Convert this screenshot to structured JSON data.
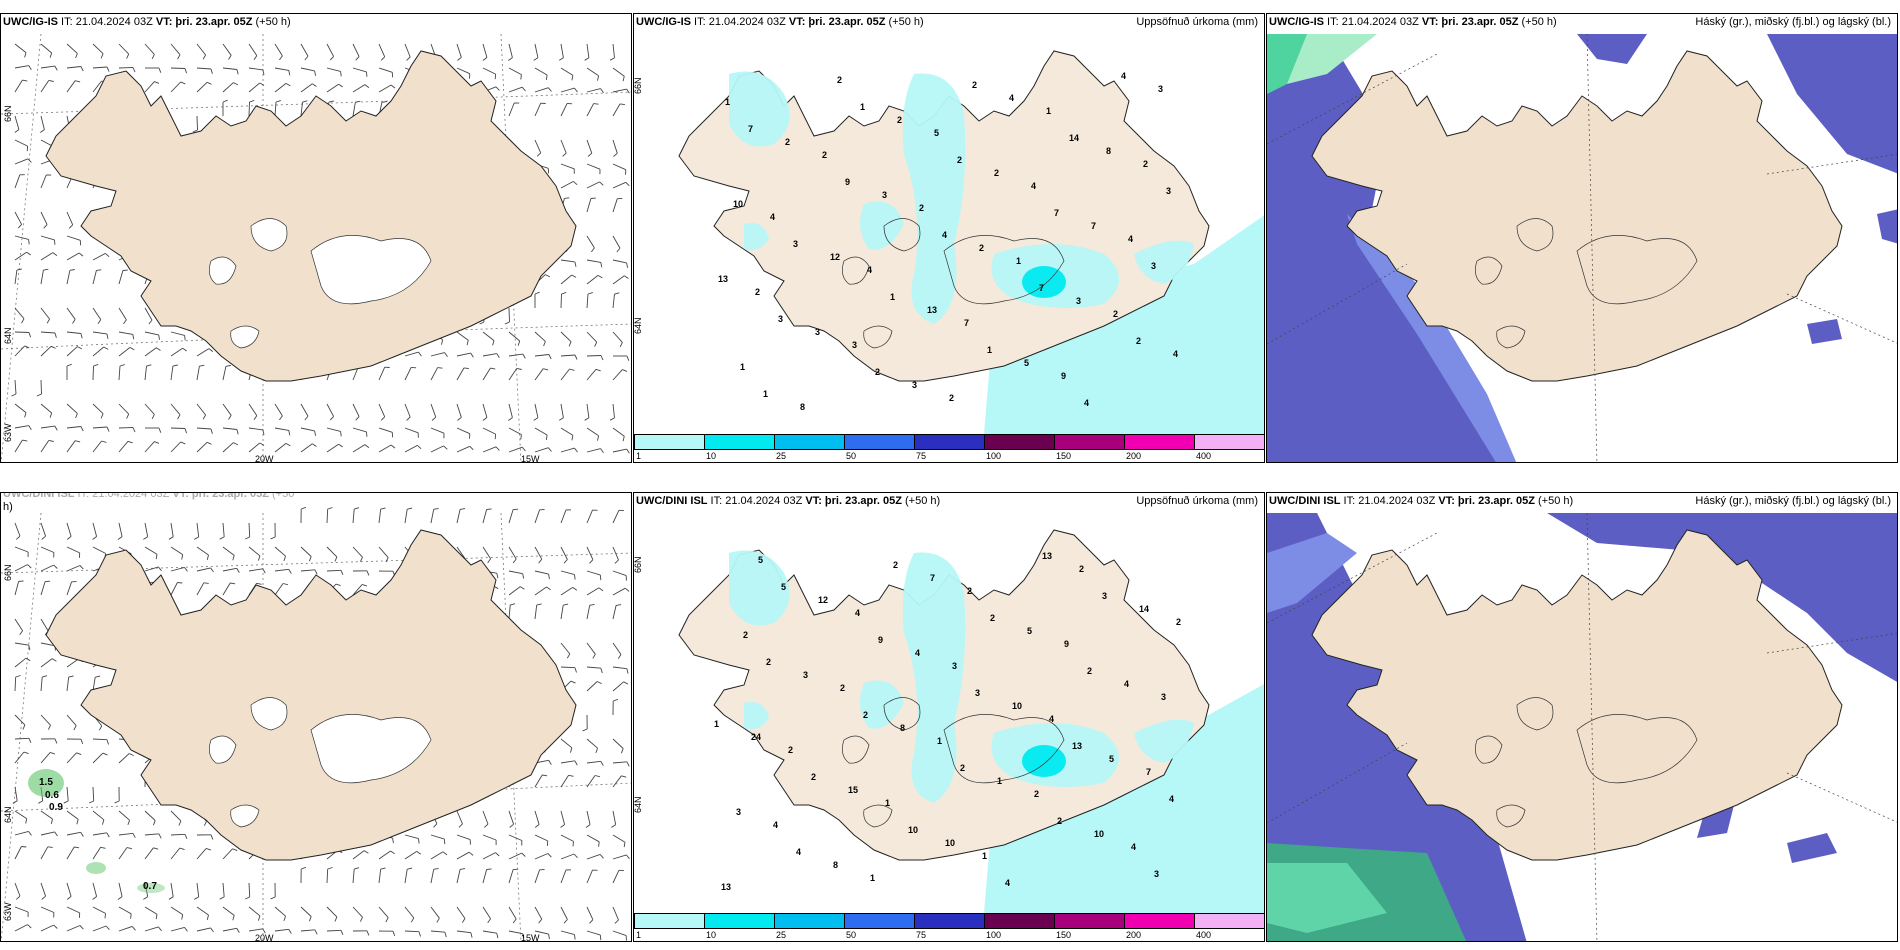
{
  "panels": [
    {
      "id": "p1",
      "header": {
        "model": "UWC/IG-IS",
        "it": " IT: 21.04.2024 03Z ",
        "vt_label": "VT:",
        "vt": " þri. 23.apr. 05Z",
        "lead": " (+50 h)"
      },
      "right_title": "",
      "lon_labels": [
        "20W",
        "15W"
      ],
      "lat_labels": [
        "66N",
        "64N",
        "63W"
      ]
    },
    {
      "id": "p2",
      "header": {
        "model": "UWC/IG-IS",
        "it": " IT: 21.04.2024 03Z ",
        "vt_label": "VT:",
        "vt": " þri. 23.apr. 05Z",
        "lead": " (+50 h)"
      },
      "right_title": "Uppsöfnuð úrkoma (mm)",
      "lat_labels": [
        "66N",
        "64N"
      ]
    },
    {
      "id": "p3",
      "header": {
        "model": "UWC/IG-IS",
        "it": " IT: 21.04.2024 03Z ",
        "vt_label": "VT:",
        "vt": " þri. 23.apr. 05Z",
        "lead": " (+50 h)"
      },
      "right_title": "Háský (gr.), miðský (fj.bl.) og lágský (bl.)"
    },
    {
      "id": "p4",
      "header": {
        "model": "UWC/DINI ISL",
        "it": " IT: 21.04.2024 03Z ",
        "vt_label": "VT:",
        "vt": " þri. 23.apr. 05Z",
        "lead": " (+50"
      },
      "header2": "h)",
      "lon_labels": [
        "20W",
        "15W"
      ],
      "lat_labels": [
        "66N",
        "64N",
        "63W"
      ],
      "green_values": [
        "1.5",
        "0.6",
        "0.9",
        "0.7"
      ]
    },
    {
      "id": "p5",
      "header": {
        "model": "UWC/DINI ISL",
        "it": " IT: 21.04.2024 03Z ",
        "vt_label": "VT:",
        "vt": " þri. 23.apr. 05Z",
        "lead": " (+50 h)"
      },
      "right_title": "Uppsöfnuð úrkoma (mm)",
      "lat_labels": [
        "66N",
        "64N"
      ]
    },
    {
      "id": "p6",
      "header": {
        "model": "UWC/DINI ISL",
        "it": " IT: 21.04.2024 03Z ",
        "vt_label": "VT:",
        "vt": " þri. 23.apr. 05Z",
        "lead": " (+50 h)"
      },
      "right_title": "Háský (gr.), miðský (fj.bl.) og lágský (bl.)"
    }
  ],
  "colorbar": {
    "labels": [
      "1",
      "10",
      "25",
      "50",
      "75",
      "100",
      "150",
      "200",
      "400"
    ],
    "colors": [
      "#b6f7f7",
      "#00eaf0",
      "#00bff0",
      "#2e6df0",
      "#2a2fc0",
      "#6a0050",
      "#a8007a",
      "#f000b0",
      "#f4b0f4"
    ]
  },
  "precip_numbers_top": [
    "1",
    "2",
    "2",
    "1",
    "2",
    "1",
    "2",
    "5",
    "4",
    "4",
    "2",
    "3",
    "2",
    "1",
    "2",
    "4",
    "4",
    "7",
    "9",
    "3",
    "2",
    "3",
    "2",
    "3",
    "4",
    "8",
    "2",
    "2",
    "7",
    "13",
    "3",
    "3",
    "4",
    "8",
    "10",
    "12",
    "13",
    "5",
    "4",
    "7",
    "9",
    "4",
    "7",
    "2",
    "1",
    "1",
    "2",
    "7",
    "3",
    "3",
    "2",
    "2",
    "14",
    "3",
    "3",
    "1",
    "1",
    "4"
  ],
  "precip_numbers_bottom": [
    "2",
    "2",
    "1",
    "2",
    "4",
    "5",
    "4",
    "3",
    "4",
    "7",
    "4",
    "1",
    "2",
    "9",
    "3",
    "2",
    "1",
    "1",
    "2",
    "2",
    "3",
    "8",
    "1",
    "10",
    "13",
    "12",
    "4",
    "10",
    "5",
    "3",
    "8",
    "7",
    "5",
    "4",
    "24",
    "15",
    "10",
    "13",
    "14",
    "2",
    "2",
    "2",
    "2",
    "3",
    "5",
    "9",
    "3",
    "13",
    "4",
    "4",
    "2",
    "2",
    "2",
    "1",
    "2",
    "10",
    "4",
    "3"
  ],
  "colors": {
    "land": "#f0e0cc",
    "land_alt": "#f5e9dc",
    "precip_light": "#b6f7f7",
    "cloud_low": "#5c5ec4",
    "cloud_mid": "#6f7fe0",
    "cloud_high": "#4fd4a0"
  }
}
